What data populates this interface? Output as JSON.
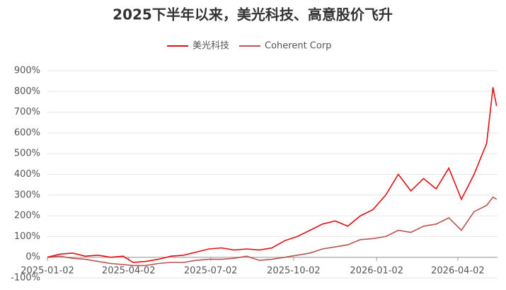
{
  "chart_data": {
    "type": "line",
    "title": "2025下半年以来，美光科技、高意股价飞升",
    "x": [
      "2025-01-02",
      "2025-01-16",
      "2025-01-30",
      "2025-02-13",
      "2025-02-27",
      "2025-03-13",
      "2025-03-27",
      "2025-04-07",
      "2025-04-21",
      "2025-05-05",
      "2025-05-19",
      "2025-06-02",
      "2025-06-16",
      "2025-06-30",
      "2025-07-14",
      "2025-07-28",
      "2025-08-11",
      "2025-08-25",
      "2025-09-08",
      "2025-09-22",
      "2025-10-06",
      "2025-10-20",
      "2025-11-03",
      "2025-11-17",
      "2025-12-01",
      "2025-12-15",
      "2025-12-29",
      "2026-01-12",
      "2026-01-26",
      "2026-02-09",
      "2026-02-23",
      "2026-03-09",
      "2026-03-23",
      "2026-04-06",
      "2026-04-20",
      "2026-05-04",
      "2026-05-11",
      "2026-05-15"
    ],
    "series": [
      {
        "name": "美光科技",
        "color": "#e00f14",
        "values": [
          0,
          15,
          20,
          5,
          10,
          0,
          5,
          -25,
          -20,
          -10,
          5,
          10,
          25,
          40,
          45,
          35,
          40,
          35,
          45,
          80,
          100,
          130,
          160,
          175,
          150,
          200,
          230,
          300,
          400,
          320,
          380,
          330,
          430,
          280,
          400,
          550,
          820,
          730
        ]
      },
      {
        "name": "Coherent Corp",
        "color": "#b85450",
        "values": [
          0,
          5,
          -5,
          -10,
          -20,
          -30,
          -35,
          -40,
          -40,
          -30,
          -25,
          -25,
          -15,
          -10,
          -10,
          -5,
          5,
          -15,
          -10,
          0,
          10,
          20,
          40,
          50,
          60,
          85,
          90,
          100,
          130,
          120,
          150,
          160,
          190,
          130,
          220,
          250,
          290,
          280
        ]
      }
    ],
    "xlim": [
      "2025-01-02",
      "2026-05-16"
    ],
    "xticks": [
      "2025-01-02",
      "2025-04-02",
      "2025-07-02",
      "2025-10-02",
      "2026-01-02",
      "2026-04-02"
    ],
    "ylim": [
      -100,
      900
    ],
    "yticks": [
      {
        "value": -100,
        "label": "-100%"
      },
      {
        "value": 0,
        "label": "0%"
      },
      {
        "value": 100,
        "label": "100%"
      },
      {
        "value": 200,
        "label": "200%"
      },
      {
        "value": 300,
        "label": "300%"
      },
      {
        "value": 400,
        "label": "400%"
      },
      {
        "value": 500,
        "label": "500%"
      },
      {
        "value": 600,
        "label": "600%"
      },
      {
        "value": 700,
        "label": "700%"
      },
      {
        "value": 800,
        "label": "800%"
      },
      {
        "value": 900,
        "label": "900%"
      }
    ],
    "grid": true,
    "legend": "top"
  }
}
